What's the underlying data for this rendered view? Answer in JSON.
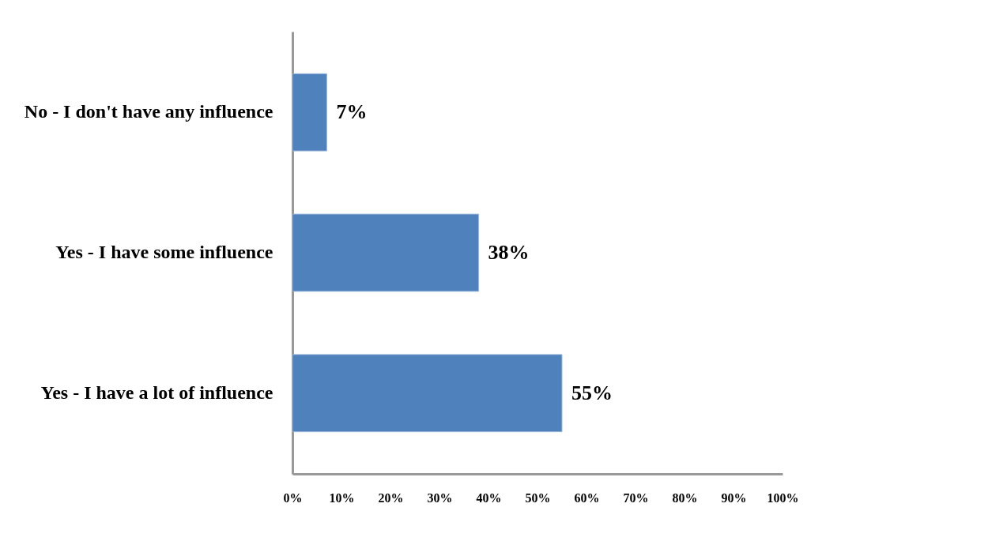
{
  "chart_data": {
    "type": "bar",
    "orientation": "horizontal",
    "categories": [
      "No - I don't have any influence",
      "Yes - I have some influence",
      "Yes - I have a lot of influence"
    ],
    "values": [
      7,
      38,
      55
    ],
    "color": "#4f81bd",
    "value_labels": [
      "7%",
      "38%",
      "55%"
    ],
    "xlim": [
      0,
      100
    ],
    "xticks": [
      {
        "value": 0,
        "label": "0%"
      },
      {
        "value": 10,
        "label": "10%"
      },
      {
        "value": 20,
        "label": "20%"
      },
      {
        "value": 30,
        "label": "30%"
      },
      {
        "value": 40,
        "label": "40%"
      },
      {
        "value": 50,
        "label": "50%"
      },
      {
        "value": 60,
        "label": "60%"
      },
      {
        "value": 70,
        "label": "70%"
      },
      {
        "value": 80,
        "label": "80%"
      },
      {
        "value": 90,
        "label": "90%"
      },
      {
        "value": 100,
        "label": "100%"
      }
    ],
    "grid": false
  }
}
